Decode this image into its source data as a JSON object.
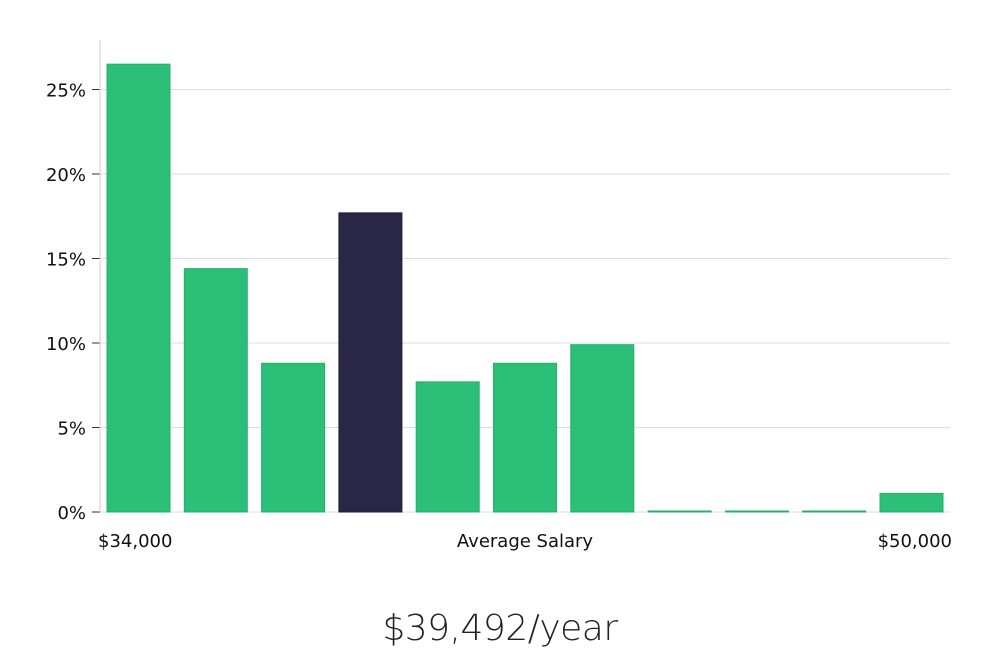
{
  "chart_data": {
    "type": "bar",
    "title": "",
    "xlabel": "Average Salary",
    "ylabel": "",
    "x_start_label": "$34,000",
    "x_end_label": "$50,000",
    "ylim": [
      0,
      28
    ],
    "yticks": [
      0,
      5,
      10,
      15,
      20,
      25
    ],
    "ytick_labels": [
      "0%",
      "5%",
      "10%",
      "15%",
      "20%",
      "25%"
    ],
    "grid": true,
    "values": [
      26.5,
      14.4,
      8.8,
      17.7,
      7.7,
      8.8,
      9.9,
      0.05,
      0.05,
      0.05,
      1.1
    ],
    "highlight_index": 3,
    "colors": {
      "bar": "#2bbf78",
      "highlight": "#2a2746",
      "grid": "#dddddd",
      "axis": "#cccccc"
    }
  },
  "salary_text": "$39,492/year"
}
